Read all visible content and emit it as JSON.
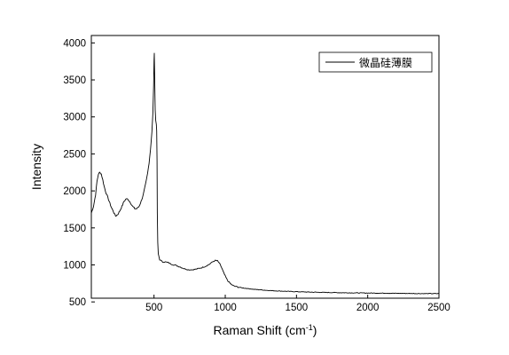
{
  "chart_data": {
    "type": "line",
    "title": "",
    "xlabel": "Raman Shift (cm",
    "xlabel_sup": "-1",
    "xlabel_end": ")",
    "ylabel": "Intensity",
    "xlim": [
      60,
      2500
    ],
    "ylim": [
      550,
      4100
    ],
    "x_ticks": [
      500,
      1000,
      1500,
      2000,
      2500
    ],
    "y_ticks": [
      500,
      1000,
      1500,
      2000,
      2500,
      3000,
      3500,
      4000
    ],
    "grid": false,
    "legend": {
      "position": "top-right",
      "entries": [
        "微晶硅薄膜"
      ]
    },
    "series": [
      {
        "name": "微晶硅薄膜",
        "color": "#000000",
        "points": [
          [
            60,
            1700
          ],
          [
            75,
            1790
          ],
          [
            90,
            1950
          ],
          [
            100,
            2130
          ],
          [
            110,
            2230
          ],
          [
            120,
            2250
          ],
          [
            130,
            2230
          ],
          [
            140,
            2150
          ],
          [
            150,
            2060
          ],
          [
            160,
            1990
          ],
          [
            170,
            1940
          ],
          [
            185,
            1860
          ],
          [
            200,
            1780
          ],
          [
            215,
            1720
          ],
          [
            230,
            1660
          ],
          [
            245,
            1680
          ],
          [
            260,
            1730
          ],
          [
            275,
            1790
          ],
          [
            290,
            1860
          ],
          [
            305,
            1895
          ],
          [
            320,
            1880
          ],
          [
            335,
            1840
          ],
          [
            350,
            1790
          ],
          [
            365,
            1760
          ],
          [
            380,
            1760
          ],
          [
            395,
            1790
          ],
          [
            410,
            1860
          ],
          [
            425,
            1950
          ],
          [
            440,
            2080
          ],
          [
            455,
            2240
          ],
          [
            465,
            2380
          ],
          [
            475,
            2560
          ],
          [
            485,
            2800
          ],
          [
            492,
            3050
          ],
          [
            497,
            3400
          ],
          [
            500,
            3760
          ],
          [
            502,
            3850
          ],
          [
            505,
            3500
          ],
          [
            508,
            3100
          ],
          [
            512,
            2950
          ],
          [
            516,
            2900
          ],
          [
            519,
            2820
          ],
          [
            521,
            2400
          ],
          [
            523,
            1700
          ],
          [
            526,
            1300
          ],
          [
            530,
            1150
          ],
          [
            540,
            1070
          ],
          [
            560,
            1040
          ],
          [
            580,
            1040
          ],
          [
            600,
            1030
          ],
          [
            620,
            1010
          ],
          [
            650,
            995
          ],
          [
            680,
            975
          ],
          [
            710,
            950
          ],
          [
            740,
            935
          ],
          [
            770,
            935
          ],
          [
            800,
            945
          ],
          [
            830,
            960
          ],
          [
            860,
            980
          ],
          [
            890,
            1010
          ],
          [
            910,
            1040
          ],
          [
            930,
            1060
          ],
          [
            945,
            1055
          ],
          [
            960,
            1020
          ],
          [
            975,
            960
          ],
          [
            990,
            890
          ],
          [
            1005,
            830
          ],
          [
            1020,
            780
          ],
          [
            1040,
            740
          ],
          [
            1060,
            715
          ],
          [
            1090,
            700
          ],
          [
            1120,
            690
          ],
          [
            1160,
            680
          ],
          [
            1200,
            670
          ],
          [
            1300,
            655
          ],
          [
            1400,
            645
          ],
          [
            1500,
            638
          ],
          [
            1600,
            632
          ],
          [
            1700,
            628
          ],
          [
            1800,
            625
          ],
          [
            1900,
            622
          ],
          [
            2000,
            620
          ],
          [
            2100,
            618
          ],
          [
            2200,
            616
          ],
          [
            2300,
            614
          ],
          [
            2400,
            612
          ],
          [
            2500,
            612
          ]
        ]
      }
    ]
  }
}
